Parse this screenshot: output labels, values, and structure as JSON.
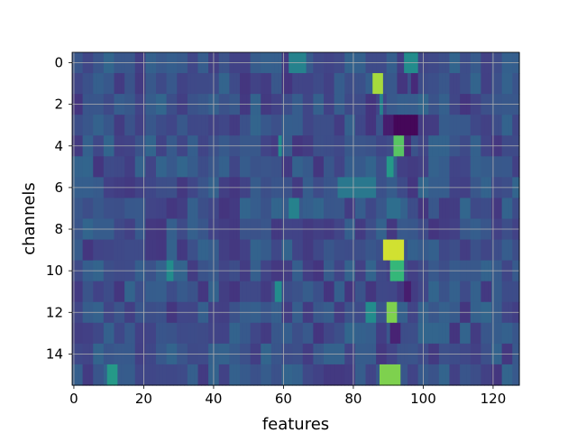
{
  "chart_data": {
    "type": "heatmap",
    "title": "",
    "xlabel": "features",
    "ylabel": "channels",
    "n_features": 128,
    "n_channels": 16,
    "xlim": [
      -0.5,
      127.5
    ],
    "ylim": [
      15.5,
      -0.5
    ],
    "xticks": [
      0,
      20,
      40,
      60,
      80,
      100,
      120
    ],
    "yticks": [
      0,
      2,
      4,
      6,
      8,
      10,
      12,
      14
    ],
    "grid": true,
    "colormap": "viridis",
    "value_range": [
      0,
      1
    ],
    "baseline_value": 0.3,
    "hotspots": [
      {
        "channel": 0,
        "feature_start": 62,
        "feature_end": 66,
        "value": 0.55
      },
      {
        "channel": 0,
        "feature_start": 95,
        "feature_end": 98,
        "value": 0.6
      },
      {
        "channel": 1,
        "feature_start": 86,
        "feature_end": 88,
        "value": 0.9
      },
      {
        "channel": 1,
        "feature_start": 97,
        "feature_end": 98,
        "value": 0.15
      },
      {
        "channel": 2,
        "feature_start": 88,
        "feature_end": 88,
        "value": 0.55
      },
      {
        "channel": 3,
        "feature_start": 89,
        "feature_end": 91,
        "value": 0.1
      },
      {
        "channel": 3,
        "feature_start": 92,
        "feature_end": 98,
        "value": 0.02
      },
      {
        "channel": 4,
        "feature_start": 92,
        "feature_end": 94,
        "value": 0.8
      },
      {
        "channel": 4,
        "feature_start": 95,
        "feature_end": 96,
        "value": 0.15
      },
      {
        "channel": 4,
        "feature_start": 59,
        "feature_end": 59,
        "value": 0.6
      },
      {
        "channel": 5,
        "feature_start": 90,
        "feature_end": 91,
        "value": 0.65
      },
      {
        "channel": 6,
        "feature_start": 76,
        "feature_end": 86,
        "value": 0.5
      },
      {
        "channel": 7,
        "feature_start": 62,
        "feature_end": 64,
        "value": 0.55
      },
      {
        "channel": 7,
        "feature_start": 90,
        "feature_end": 93,
        "value": 0.45
      },
      {
        "channel": 9,
        "feature_start": 89,
        "feature_end": 94,
        "value": 0.95
      },
      {
        "channel": 10,
        "feature_start": 91,
        "feature_end": 94,
        "value": 0.75
      },
      {
        "channel": 10,
        "feature_start": 27,
        "feature_end": 28,
        "value": 0.6
      },
      {
        "channel": 11,
        "feature_start": 58,
        "feature_end": 59,
        "value": 0.6
      },
      {
        "channel": 11,
        "feature_start": 95,
        "feature_end": 96,
        "value": 0.1
      },
      {
        "channel": 12,
        "feature_start": 90,
        "feature_end": 92,
        "value": 0.85
      },
      {
        "channel": 12,
        "feature_start": 84,
        "feature_end": 86,
        "value": 0.6
      },
      {
        "channel": 13,
        "feature_start": 91,
        "feature_end": 93,
        "value": 0.12
      },
      {
        "channel": 15,
        "feature_start": 88,
        "feature_end": 93,
        "value": 0.85
      },
      {
        "channel": 15,
        "feature_start": 10,
        "feature_end": 12,
        "value": 0.65
      }
    ]
  }
}
